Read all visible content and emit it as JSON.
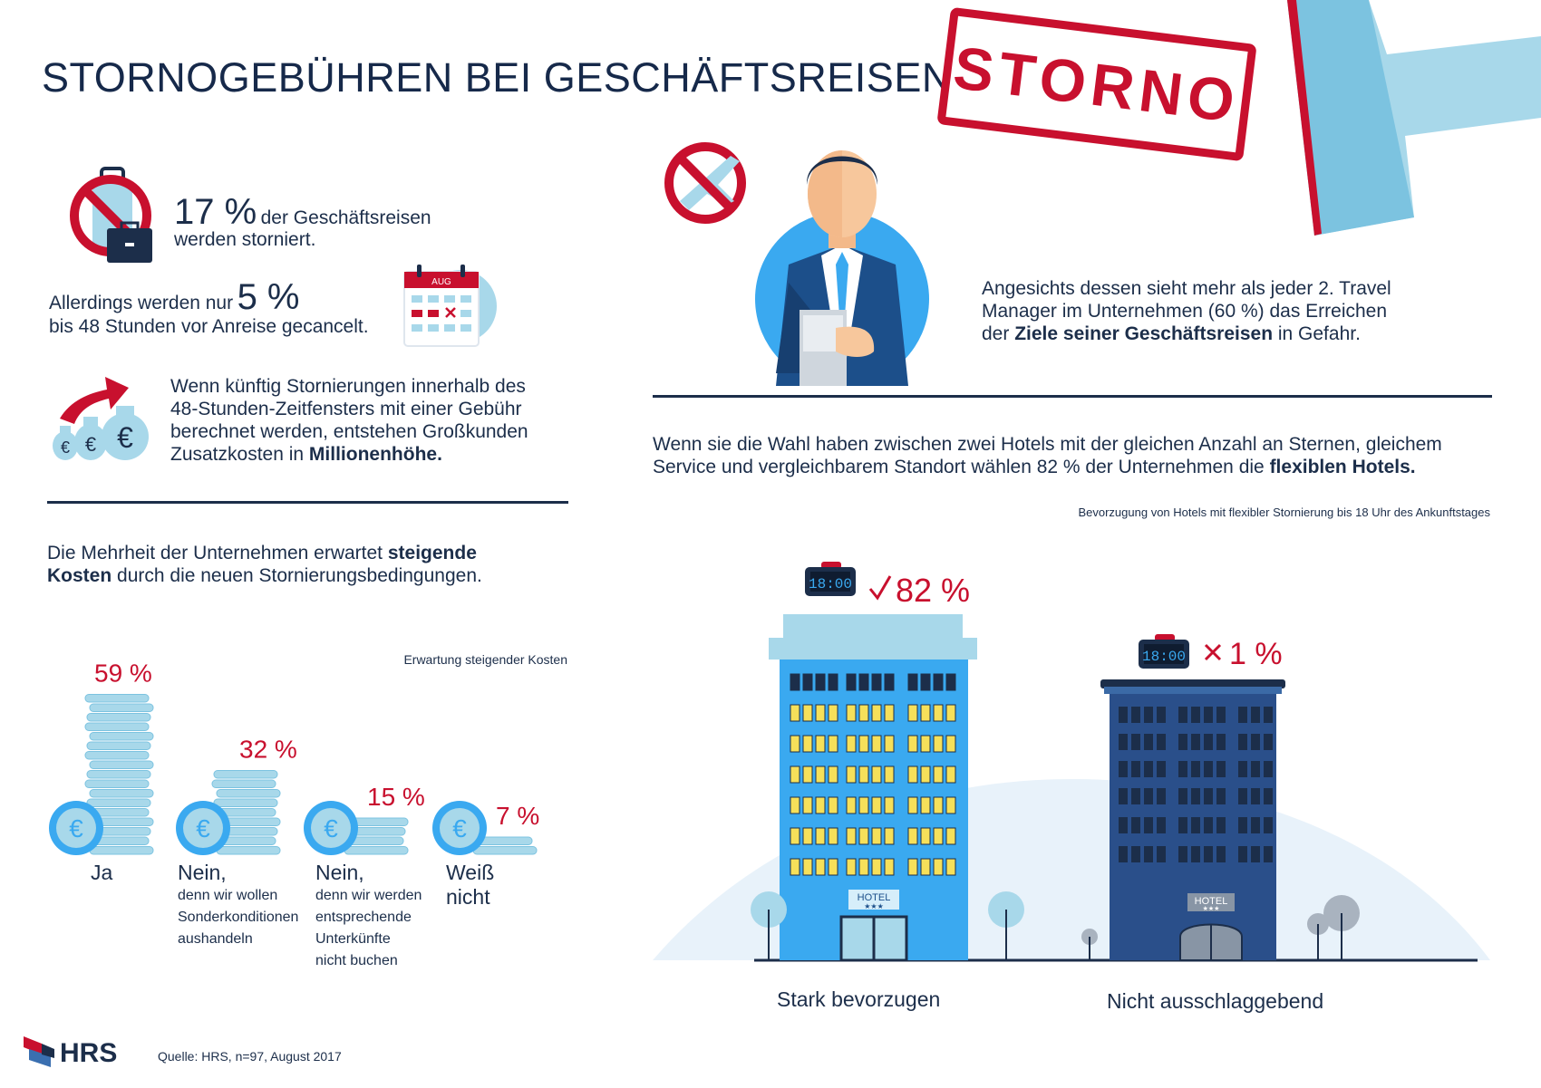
{
  "title": "STORNOGEBÜHREN BEI GESCHÄFTSREISEN",
  "stamp_text": "STORNO",
  "colors": {
    "navy": "#1c2e4a",
    "red": "#c8102e",
    "light_blue": "#a8d8ea",
    "blue": "#3aa9f0",
    "dark_blue": "#2a4f8a"
  },
  "icons": [
    "no-travel-icon",
    "briefcase-icon",
    "calendar-icon",
    "money-bags-icon",
    "no-flight-icon",
    "travel-manager-icon",
    "stamp-icon",
    "alarm-clock-icon",
    "check-icon",
    "cross-icon",
    "hotel-icon",
    "tree-icon",
    "euro-coin-icon",
    "hrs-logo"
  ],
  "fact1": {
    "value": "17 %",
    "text_line1": "der Geschäftsreisen",
    "text_line2": "werden storniert."
  },
  "fact2": {
    "text_line1": "Allerdings werden nur",
    "value": "5 %",
    "text_line2": "bis 48 Stunden vor Anreise gecancelt.",
    "calendar_month": "AUG"
  },
  "fact3": {
    "line1": "Wenn künftig Stornierungen innerhalb des",
    "line2": "48-Stunden-Zeitfensters mit einer Gebühr",
    "line3": "berechnet werden, entstehen Großkunden",
    "line4_plain": "Zusatzkosten in",
    "line4_bold": "Millionenhöhe."
  },
  "manager": {
    "line1": "Angesichts dessen sieht mehr als jeder 2. Travel",
    "line2": "Manager im Unternehmen (60 %) das Erreichen",
    "line3_plain_a": "der",
    "line3_bold": "Ziele seiner Geschäftsreisen",
    "line3_plain_b": "in Gefahr."
  },
  "hotel_intro": {
    "line1": "Wenn sie die Wahl haben zwischen zwei Hotels mit der gleichen Anzahl an Sternen, gleichem",
    "line2_plain": "Service und vergleichbarem Standort wählen 82 % der Unternehmen die",
    "line2_bold": "flexiblen Hotels."
  },
  "costs_intro": {
    "line1_plain": "Die Mehrheit der Unternehmen erwartet",
    "line1_bold": "steigende",
    "line2_bold": "Kosten",
    "line2_plain": "durch die neuen Stornierungsbedingungen."
  },
  "clock_text": "18:00",
  "hotel_sign": "HOTEL",
  "hotel_stars": "★★★",
  "source": "Quelle: HRS, n=97, August 2017",
  "logo": "HRS",
  "chart_data": [
    {
      "type": "bar",
      "title": "Erwartung steigender Kosten",
      "categories": [
        "Ja",
        "Nein, denn wir wollen Sonderkonditionen aushandeln",
        "Nein, denn wir werden entsprechende Unterkünfte nicht buchen",
        "Weiß nicht"
      ],
      "labels": [
        {
          "main": "Ja",
          "sub": []
        },
        {
          "main": "Nein,",
          "sub": [
            "denn wir wollen",
            "Sonderkonditionen",
            "aushandeln"
          ]
        },
        {
          "main": "Nein,",
          "sub": [
            "denn wir werden",
            "entsprechende",
            "Unterkünfte",
            "nicht buchen"
          ]
        },
        {
          "main": "Weiß",
          "sub": [
            "nicht"
          ]
        }
      ],
      "values": [
        59,
        32,
        15,
        7
      ],
      "value_labels": [
        "59 %",
        "32 %",
        "15 %",
        "7 %"
      ],
      "unit": "%"
    },
    {
      "type": "bar",
      "title": "Bevorzugung von Hotels mit flexibler Stornierung bis 18 Uhr des Ankunftstages",
      "categories": [
        "Stark bevorzugen",
        "Nicht ausschlaggebend"
      ],
      "values": [
        82,
        1
      ],
      "value_labels": [
        "82 %",
        "1 %"
      ],
      "unit": "%"
    }
  ]
}
